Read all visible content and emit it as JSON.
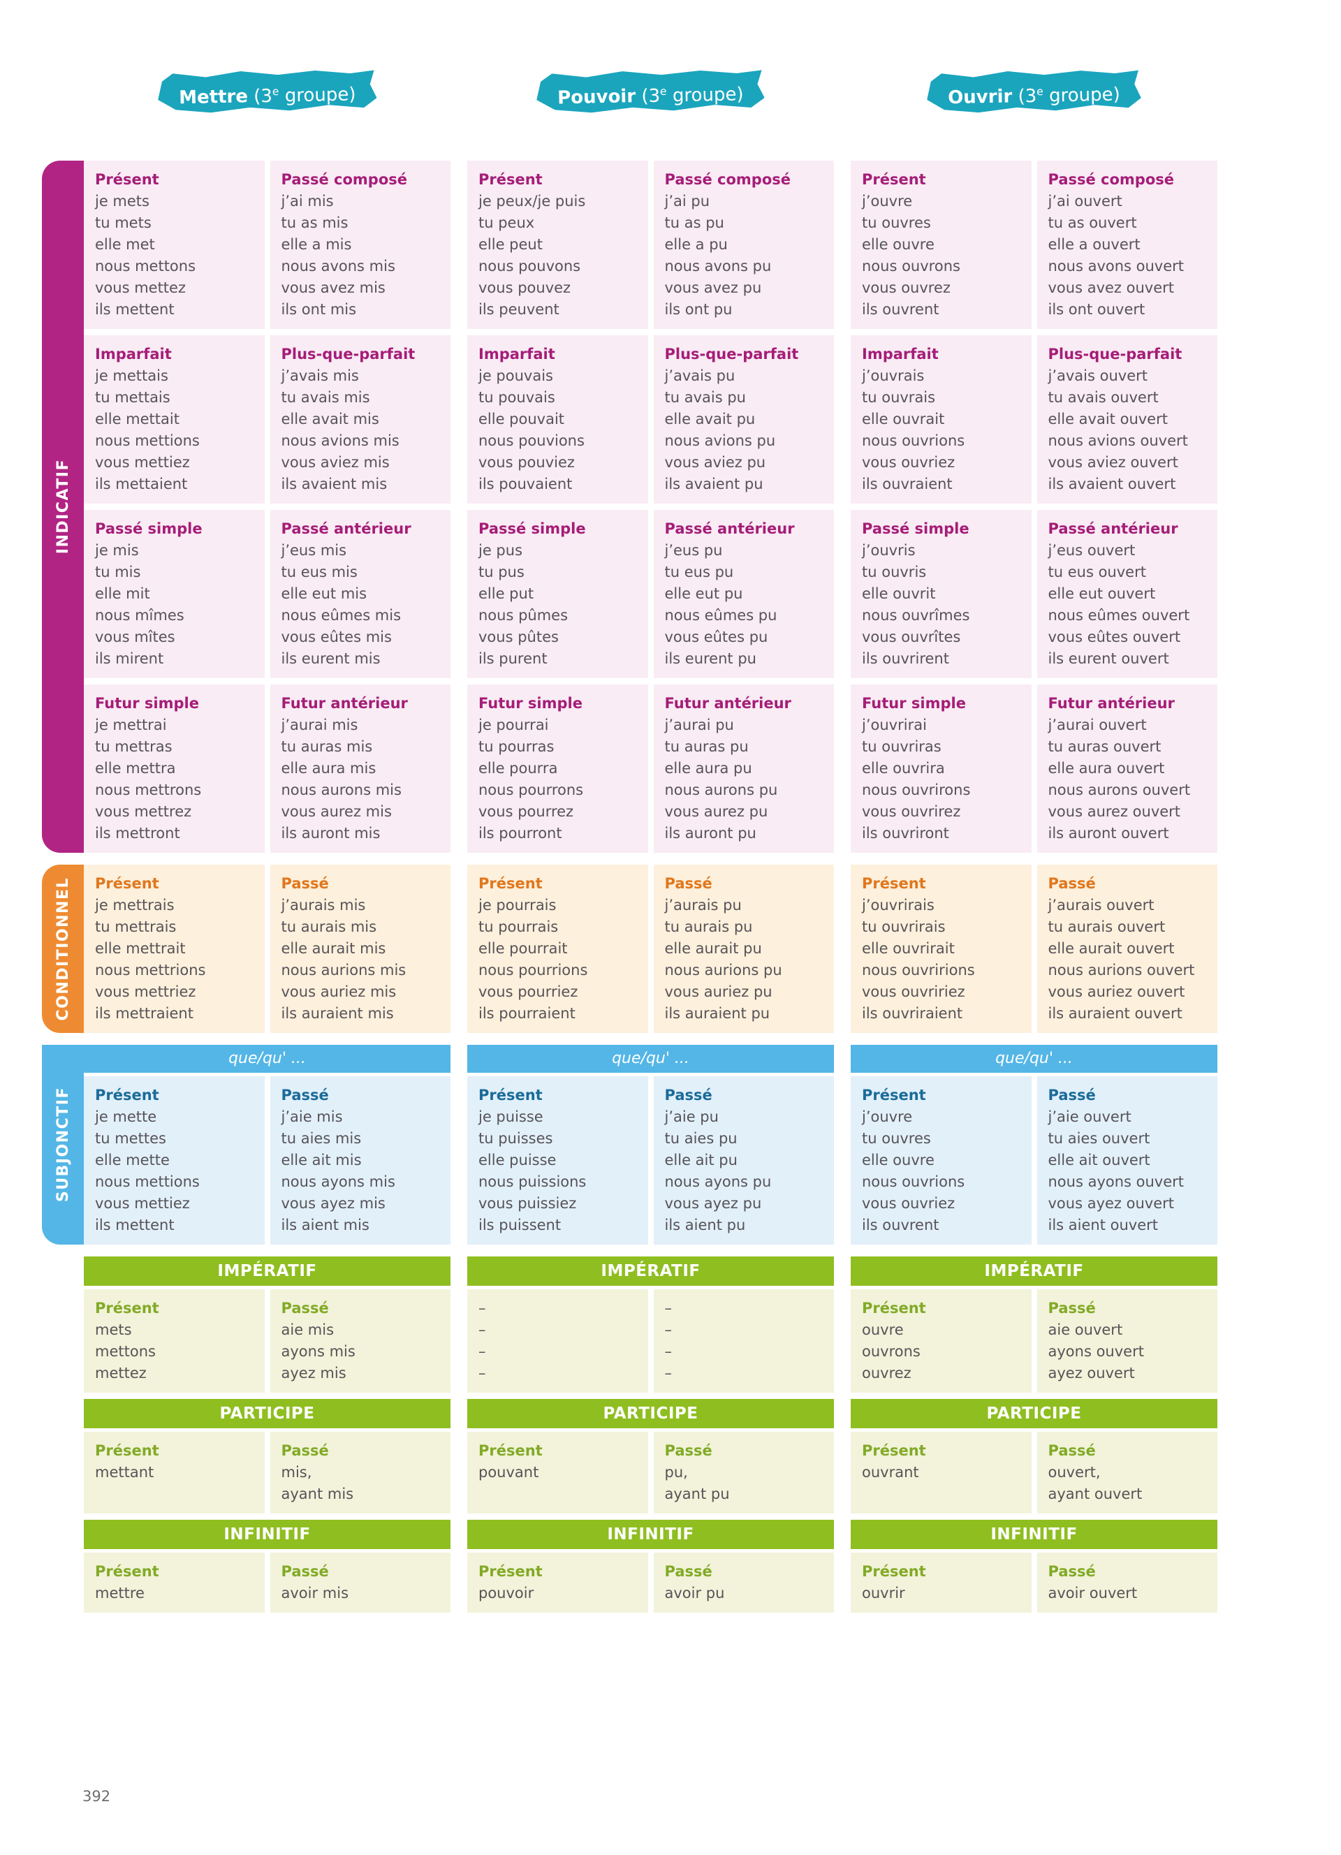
{
  "page": {
    "number": "392"
  },
  "labels": {
    "que_header": "que/qu' ...",
    "imperatif": "IMPÉRATIF",
    "participe": "PARTICIPE",
    "infinitif": "INFINITIF"
  },
  "rails": [
    {
      "label": "INDICATIF"
    },
    {
      "label": "CONDITIONNEL"
    },
    {
      "label": "SUBJONCTIF"
    }
  ],
  "colors": {
    "badge_teal": "#1aa5bd",
    "indicatif_rail": "#b12484",
    "indicatif_bg": "#f9ecf4",
    "indicatif_title": "#a51d78",
    "conditionnel_rail": "#ee8b32",
    "conditionnel_bg": "#fdf0dc",
    "conditionnel_title": "#e0771d",
    "subjonctif_rail": "#53b6e6",
    "subjonctif_bg": "#e2f0fa",
    "subjonctif_title": "#1b6b99",
    "green_bar": "#8fbe20",
    "green_bg": "#f2f3da",
    "green_title": "#82aa27",
    "body_text": "#575358"
  },
  "verbs": [
    {
      "key": "mettre",
      "badge": {
        "name": "Mettre",
        "group_pre": " (3",
        "group_sup": "e",
        "group_post": " groupe)"
      },
      "indicatif": [
        {
          "left": {
            "title": "Présent",
            "forms": [
              "je mets",
              "tu mets",
              "elle met",
              "nous mettons",
              "vous mettez",
              "ils mettent"
            ]
          },
          "right": {
            "title": "Passé composé",
            "forms": [
              "j’ai mis",
              "tu as mis",
              "elle a mis",
              "nous avons mis",
              "vous avez mis",
              "ils ont mis"
            ]
          }
        },
        {
          "left": {
            "title": "Imparfait",
            "forms": [
              "je mettais",
              "tu mettais",
              "elle mettait",
              "nous mettions",
              "vous mettiez",
              "ils mettaient"
            ]
          },
          "right": {
            "title": "Plus-que-parfait",
            "forms": [
              "j’avais mis",
              "tu avais mis",
              "elle avait mis",
              "nous avions mis",
              "vous aviez mis",
              "ils avaient mis"
            ]
          }
        },
        {
          "left": {
            "title": "Passé simple",
            "forms": [
              "je mis",
              "tu mis",
              "elle mit",
              "nous mîmes",
              "vous mîtes",
              "ils mirent"
            ]
          },
          "right": {
            "title": "Passé antérieur",
            "forms": [
              "j’eus mis",
              "tu eus mis",
              "elle eut mis",
              "nous eûmes mis",
              "vous eûtes mis",
              "ils eurent mis"
            ]
          }
        },
        {
          "left": {
            "title": "Futur simple",
            "forms": [
              "je mettrai",
              "tu mettras",
              "elle mettra",
              "nous mettrons",
              "vous mettrez",
              "ils mettront"
            ]
          },
          "right": {
            "title": "Futur antérieur",
            "forms": [
              "j’aurai mis",
              "tu auras mis",
              "elle aura mis",
              "nous aurons mis",
              "vous aurez mis",
              "ils auront mis"
            ]
          }
        }
      ],
      "conditionnel": {
        "left": {
          "title": "Présent",
          "forms": [
            "je mettrais",
            "tu mettrais",
            "elle mettrait",
            "nous mettrions",
            "vous mettriez",
            "ils mettraient"
          ]
        },
        "right": {
          "title": "Passé",
          "forms": [
            "j’aurais mis",
            "tu aurais mis",
            "elle aurait mis",
            "nous aurions mis",
            "vous auriez mis",
            "ils auraient mis"
          ]
        }
      },
      "subjonctif": {
        "left": {
          "title": "Présent",
          "forms": [
            "je mette",
            "tu mettes",
            "elle mette",
            "nous mettions",
            "vous mettiez",
            "ils mettent"
          ]
        },
        "right": {
          "title": "Passé",
          "forms": [
            "j’aie mis",
            "tu aies mis",
            "elle ait mis",
            "nous ayons mis",
            "vous ayez mis",
            "ils aient mis"
          ]
        }
      },
      "imperatif": {
        "left": {
          "title": "Présent",
          "forms": [
            "mets",
            "mettons",
            "mettez"
          ]
        },
        "right": {
          "title": "Passé",
          "forms": [
            "aie mis",
            "ayons mis",
            "ayez mis"
          ]
        }
      },
      "participe": {
        "left": {
          "title": "Présent",
          "forms": [
            "mettant"
          ]
        },
        "right": {
          "title": "Passé",
          "forms": [
            "mis,",
            "ayant mis"
          ]
        }
      },
      "infinitif": {
        "left": {
          "title": "Présent",
          "forms": [
            "mettre"
          ]
        },
        "right": {
          "title": "Passé",
          "forms": [
            "avoir mis"
          ]
        }
      }
    },
    {
      "key": "pouvoir",
      "badge": {
        "name": "Pouvoir",
        "group_pre": " (3",
        "group_sup": "e",
        "group_post": " groupe)"
      },
      "indicatif": [
        {
          "left": {
            "title": "Présent",
            "forms": [
              "je peux/je puis",
              "tu peux",
              "elle peut",
              "nous pouvons",
              "vous pouvez",
              "ils peuvent"
            ]
          },
          "right": {
            "title": "Passé composé",
            "forms": [
              "j’ai pu",
              "tu as pu",
              "elle a pu",
              "nous avons pu",
              "vous avez pu",
              "ils ont pu"
            ]
          }
        },
        {
          "left": {
            "title": "Imparfait",
            "forms": [
              "je pouvais",
              "tu pouvais",
              "elle pouvait",
              "nous pouvions",
              "vous pouviez",
              "ils pouvaient"
            ]
          },
          "right": {
            "title": "Plus-que-parfait",
            "forms": [
              "j’avais pu",
              "tu avais pu",
              "elle avait pu",
              "nous avions pu",
              "vous aviez pu",
              "ils avaient pu"
            ]
          }
        },
        {
          "left": {
            "title": "Passé simple",
            "forms": [
              "je pus",
              "tu pus",
              "elle put",
              "nous pûmes",
              "vous pûtes",
              "ils purent"
            ]
          },
          "right": {
            "title": "Passé antérieur",
            "forms": [
              "j’eus pu",
              "tu eus pu",
              "elle eut pu",
              "nous eûmes pu",
              "vous eûtes pu",
              "ils eurent pu"
            ]
          }
        },
        {
          "left": {
            "title": "Futur simple",
            "forms": [
              "je pourrai",
              "tu pourras",
              "elle pourra",
              "nous pourrons",
              "vous pourrez",
              "ils pourront"
            ]
          },
          "right": {
            "title": "Futur antérieur",
            "forms": [
              "j’aurai pu",
              "tu auras pu",
              "elle aura pu",
              "nous aurons pu",
              "vous aurez pu",
              "ils auront pu"
            ]
          }
        }
      ],
      "conditionnel": {
        "left": {
          "title": "Présent",
          "forms": [
            "je pourrais",
            "tu pourrais",
            "elle pourrait",
            "nous pourrions",
            "vous pourriez",
            "ils pourraient"
          ]
        },
        "right": {
          "title": "Passé",
          "forms": [
            "j’aurais pu",
            "tu aurais pu",
            "elle aurait pu",
            "nous aurions pu",
            "vous auriez pu",
            "ils auraient pu"
          ]
        }
      },
      "subjonctif": {
        "left": {
          "title": "Présent",
          "forms": [
            "je puisse",
            "tu puisses",
            "elle puisse",
            "nous puissions",
            "vous puissiez",
            "ils puissent"
          ]
        },
        "right": {
          "title": "Passé",
          "forms": [
            "j’aie pu",
            "tu aies pu",
            "elle ait pu",
            "nous ayons pu",
            "vous ayez pu",
            "ils aient pu"
          ]
        }
      },
      "imperatif": {
        "left": {
          "title": "",
          "forms": [
            "–",
            "–",
            "–",
            "–"
          ]
        },
        "right": {
          "title": "",
          "forms": [
            "–",
            "–",
            "–",
            "–"
          ]
        }
      },
      "participe": {
        "left": {
          "title": "Présent",
          "forms": [
            "pouvant"
          ]
        },
        "right": {
          "title": "Passé",
          "forms": [
            "pu,",
            "ayant pu"
          ]
        }
      },
      "infinitif": {
        "left": {
          "title": "Présent",
          "forms": [
            "pouvoir"
          ]
        },
        "right": {
          "title": "Passé",
          "forms": [
            "avoir pu"
          ]
        }
      }
    },
    {
      "key": "ouvrir",
      "badge": {
        "name": "Ouvrir",
        "group_pre": " (3",
        "group_sup": "e",
        "group_post": " groupe)"
      },
      "indicatif": [
        {
          "left": {
            "title": "Présent",
            "forms": [
              "j’ouvre",
              "tu ouvres",
              "elle ouvre",
              "nous ouvrons",
              "vous ouvrez",
              "ils ouvrent"
            ]
          },
          "right": {
            "title": "Passé composé",
            "forms": [
              "j’ai ouvert",
              "tu as ouvert",
              "elle a ouvert",
              "nous avons ouvert",
              "vous avez ouvert",
              "ils ont ouvert"
            ]
          }
        },
        {
          "left": {
            "title": "Imparfait",
            "forms": [
              "j’ouvrais",
              "tu ouvrais",
              "elle ouvrait",
              "nous ouvrions",
              "vous ouvriez",
              "ils ouvraient"
            ]
          },
          "right": {
            "title": "Plus-que-parfait",
            "forms": [
              "j’avais ouvert",
              "tu avais ouvert",
              "elle avait ouvert",
              "nous avions ouvert",
              "vous aviez ouvert",
              "ils avaient ouvert"
            ]
          }
        },
        {
          "left": {
            "title": "Passé simple",
            "forms": [
              "j’ouvris",
              "tu ouvris",
              "elle ouvrit",
              "nous ouvrîmes",
              "vous ouvrîtes",
              "ils ouvrirent"
            ]
          },
          "right": {
            "title": "Passé antérieur",
            "forms": [
              "j’eus ouvert",
              "tu eus ouvert",
              "elle eut ouvert",
              "nous eûmes ouvert",
              "vous eûtes ouvert",
              "ils eurent ouvert"
            ]
          }
        },
        {
          "left": {
            "title": "Futur simple",
            "forms": [
              "j’ouvrirai",
              "tu ouvriras",
              "elle ouvrira",
              "nous ouvrirons",
              "vous ouvrirez",
              "ils ouvriront"
            ]
          },
          "right": {
            "title": "Futur antérieur",
            "forms": [
              "j’aurai ouvert",
              "tu auras ouvert",
              "elle aura ouvert",
              "nous aurons ouvert",
              "vous aurez ouvert",
              "ils auront ouvert"
            ]
          }
        }
      ],
      "conditionnel": {
        "left": {
          "title": "Présent",
          "forms": [
            "j’ouvrirais",
            "tu ouvrirais",
            "elle ouvrirait",
            "nous ouvririons",
            "vous ouvririez",
            "ils ouvriraient"
          ]
        },
        "right": {
          "title": "Passé",
          "forms": [
            "j’aurais ouvert",
            "tu aurais ouvert",
            "elle aurait ouvert",
            "nous aurions ouvert",
            "vous auriez ouvert",
            "ils auraient ouvert"
          ]
        }
      },
      "subjonctif": {
        "left": {
          "title": "Présent",
          "forms": [
            "j’ouvre",
            "tu ouvres",
            "elle ouvre",
            "nous ouvrions",
            "vous ouvriez",
            "ils ouvrent"
          ]
        },
        "right": {
          "title": "Passé",
          "forms": [
            "j’aie ouvert",
            "tu aies ouvert",
            "elle ait ouvert",
            "nous ayons ouvert",
            "vous ayez ouvert",
            "ils aient ouvert"
          ]
        }
      },
      "imperatif": {
        "left": {
          "title": "Présent",
          "forms": [
            "ouvre",
            "ouvrons",
            "ouvrez"
          ]
        },
        "right": {
          "title": "Passé",
          "forms": [
            "aie ouvert",
            "ayons ouvert",
            "ayez ouvert"
          ]
        }
      },
      "participe": {
        "left": {
          "title": "Présent",
          "forms": [
            "ouvrant"
          ]
        },
        "right": {
          "title": "Passé",
          "forms": [
            "ouvert,",
            "ayant ouvert"
          ]
        }
      },
      "infinitif": {
        "left": {
          "title": "Présent",
          "forms": [
            "ouvrir"
          ]
        },
        "right": {
          "title": "Passé",
          "forms": [
            "avoir ouvert"
          ]
        }
      }
    }
  ]
}
